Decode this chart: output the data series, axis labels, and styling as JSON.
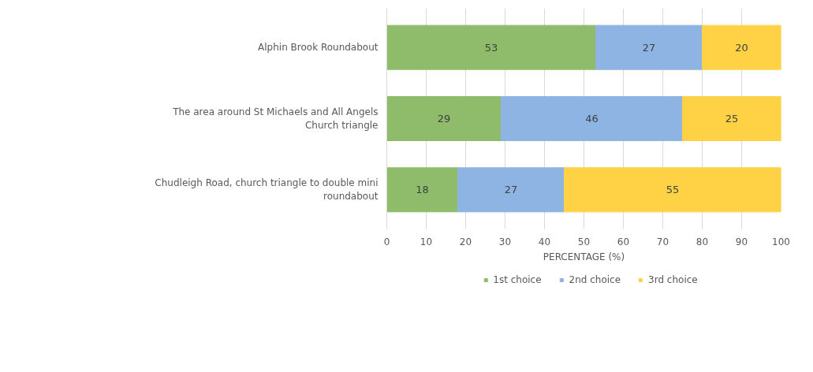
{
  "chart_data": {
    "type": "bar",
    "orientation": "horizontal",
    "stacked": true,
    "xlabel": "PERCENTAGE (%)",
    "categories": [
      "Alphin Brook Roundabout",
      "The area around St Michaels and All Angels Church triangle",
      "Chudleigh Road, church triangle to double mini roundabout"
    ],
    "series": [
      {
        "name": "1st choice",
        "color": "#8fbc6a",
        "values": [
          53,
          29,
          18
        ]
      },
      {
        "name": "2nd choice",
        "color": "#8db4e2",
        "values": [
          27,
          46,
          27
        ]
      },
      {
        "name": "3rd choice",
        "color": "#ffd246",
        "values": [
          20,
          25,
          55
        ]
      }
    ],
    "xlim": [
      0,
      100
    ],
    "xticks": [
      0,
      10,
      20,
      30,
      40,
      50,
      60,
      70,
      80,
      90,
      100
    ],
    "grid": "x",
    "legend": "bottom",
    "data_labels": true
  }
}
